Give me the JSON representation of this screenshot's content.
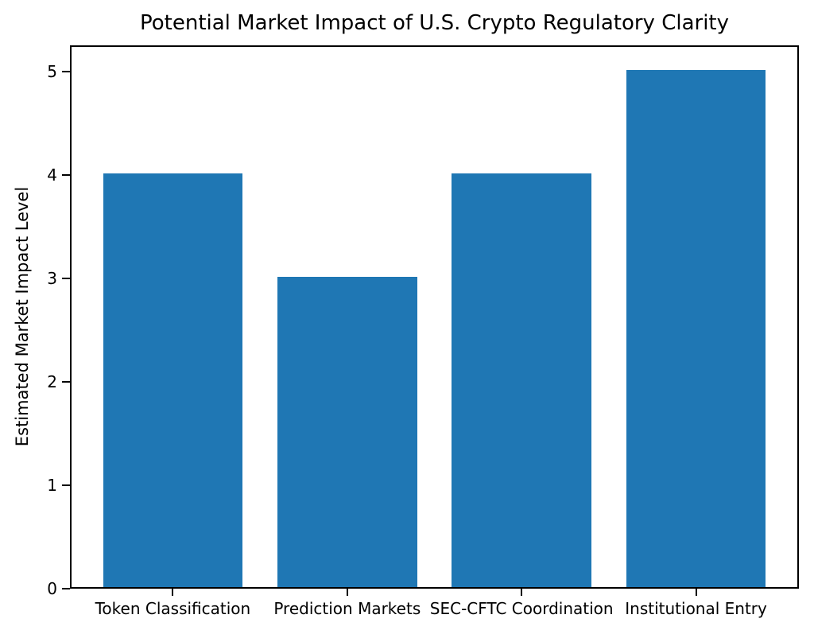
{
  "chart_data": {
    "type": "bar",
    "title": "Potential Market Impact of U.S. Crypto Regulatory Clarity",
    "categories": [
      "Token Classification",
      "Prediction Markets",
      "SEC-CFTC Coordination",
      "Institutional Entry"
    ],
    "values": [
      4,
      3,
      4,
      5
    ],
    "xlabel": "",
    "ylabel": "Estimated Market Impact Level",
    "ylim": [
      0,
      5.25
    ],
    "yticks": [
      0,
      1,
      2,
      3,
      4,
      5
    ],
    "bar_color": "#1f77b4",
    "grid": false,
    "legend_position": "none"
  }
}
